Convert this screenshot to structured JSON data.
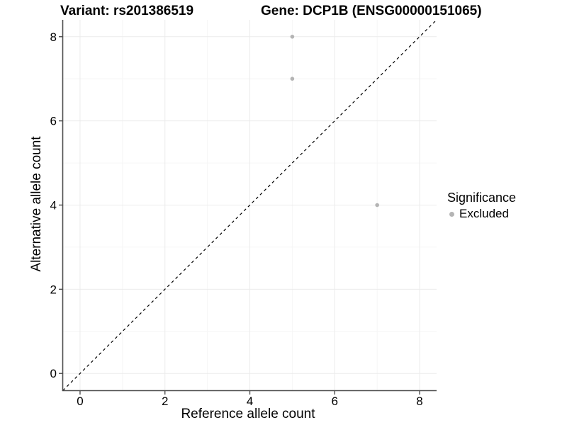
{
  "header": {
    "title_left": "Variant: rs201386519",
    "title_right": "Gene: DCP1B (ENSG00000151065)"
  },
  "chart_data": {
    "type": "scatter",
    "xlabel": "Reference allele count",
    "ylabel": "Alternative allele count",
    "x_ticks": [
      "0",
      "2",
      "4",
      "6",
      "8"
    ],
    "y_ticks": [
      "0",
      "2",
      "4",
      "6",
      "8"
    ],
    "x_tick_values": [
      0,
      2,
      4,
      6,
      8
    ],
    "y_tick_values": [
      0,
      2,
      4,
      6,
      8
    ],
    "x_minor_values": [
      1,
      3,
      5,
      7
    ],
    "y_minor_values": [
      1,
      3,
      5,
      7
    ],
    "xlim": [
      -0.4,
      8.4
    ],
    "ylim": [
      -0.4,
      8.4
    ],
    "grid": true,
    "legend_position": "right",
    "series": [
      {
        "name": "Excluded",
        "color": "#b4b4b4",
        "points": [
          {
            "x": 5,
            "y": 8
          },
          {
            "x": 5,
            "y": 7
          },
          {
            "x": 7,
            "y": 4
          }
        ]
      }
    ],
    "reference_line": {
      "slope": 1,
      "intercept": 0,
      "style": "dashed",
      "color": "#000000"
    }
  },
  "legend": {
    "title": "Significance",
    "items": [
      {
        "label": "Excluded",
        "color": "#b4b4b4"
      }
    ]
  },
  "colors": {
    "background": "#ffffff",
    "grid_major": "#ebebeb",
    "grid_minor": "#f6f6f6",
    "axis": "#4d4d4d",
    "point": "#b4b4b4",
    "text": "#000000"
  }
}
